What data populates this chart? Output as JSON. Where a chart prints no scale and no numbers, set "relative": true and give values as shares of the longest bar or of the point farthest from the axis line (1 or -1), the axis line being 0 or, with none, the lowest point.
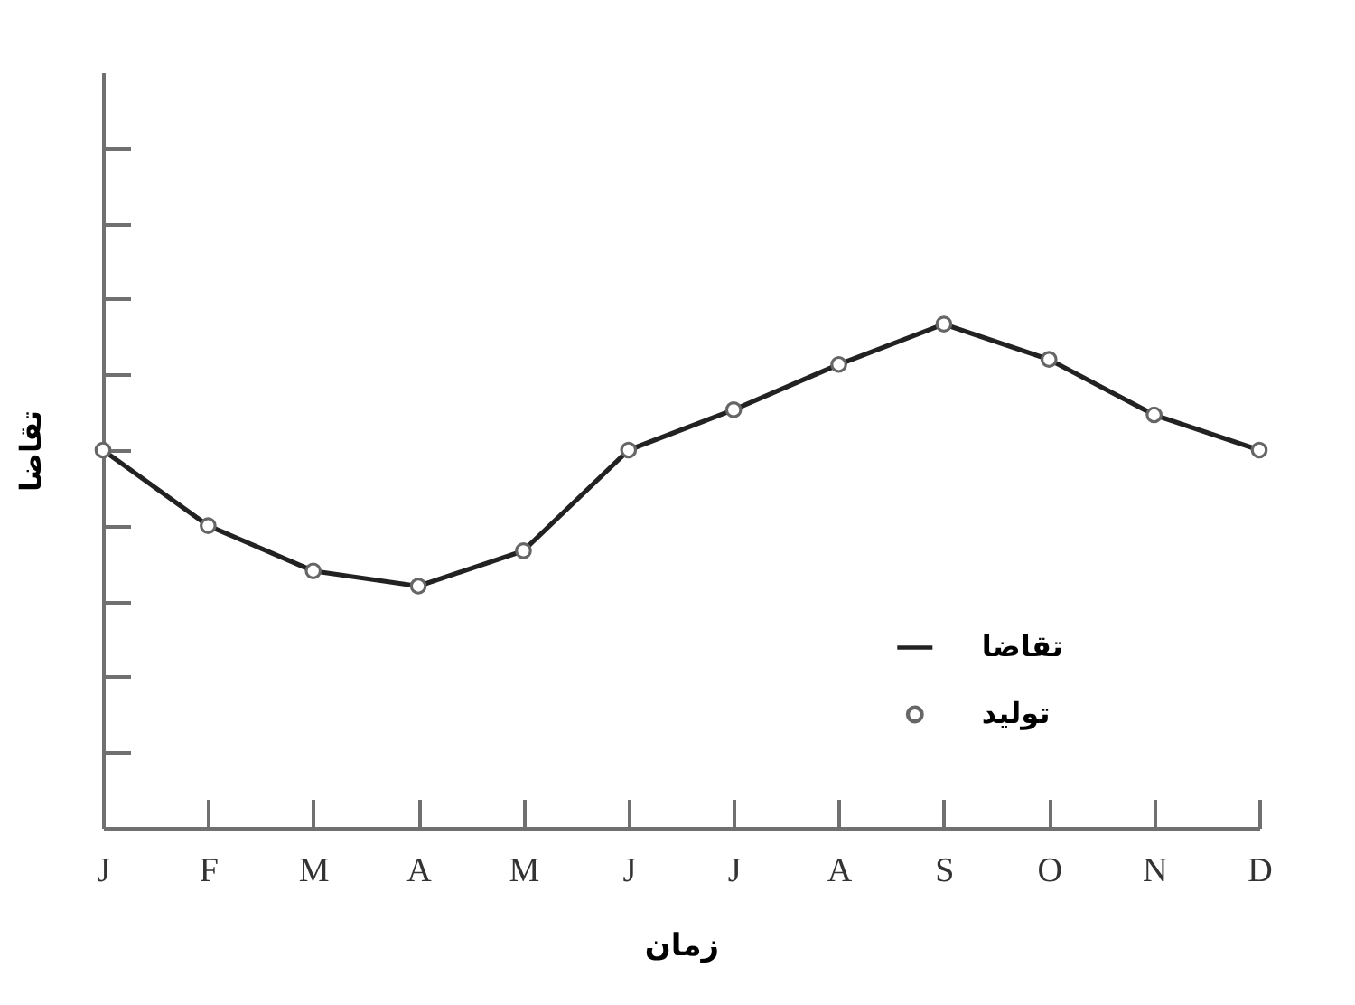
{
  "chart_data": {
    "type": "line",
    "relative": true,
    "xlabel": "زمان",
    "ylabel": "تقاضا",
    "categories": [
      "J",
      "F",
      "M",
      "A",
      "M",
      "J",
      "J",
      "A",
      "S",
      "O",
      "N",
      "D"
    ],
    "series": [
      {
        "name": "تقاضا",
        "color": "#222222",
        "values": [
          0.75,
          0.6,
          0.51,
          0.48,
          0.55,
          0.75,
          0.83,
          0.92,
          1,
          0.93,
          0.82,
          0.75
        ]
      },
      {
        "name": "تولید",
        "type": "scatter",
        "marker": "circle",
        "color": "#666666",
        "values": [
          0.75,
          0.6,
          0.51,
          0.48,
          0.55,
          0.75,
          0.83,
          0.92,
          1,
          0.93,
          0.82,
          0.75
        ]
      }
    ],
    "legend": "bottom right"
  }
}
